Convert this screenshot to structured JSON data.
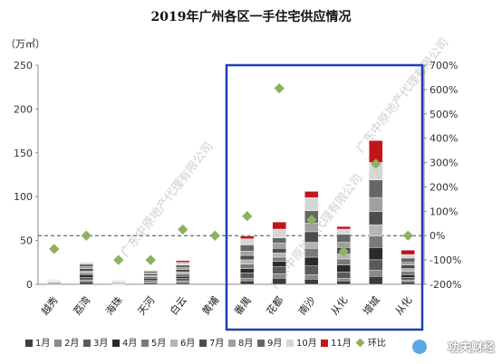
{
  "chart_data": {
    "type": "bar",
    "title": "2019年广州各区一手住宅供应情况",
    "ylabel": "（万㎡）",
    "ylim": [
      0,
      250
    ],
    "y2lim": [
      -200,
      700
    ],
    "yticks": [
      "0",
      "50",
      "100",
      "150",
      "200",
      "250"
    ],
    "y2ticks": [
      "-200%",
      "-100%",
      "0%",
      "100%",
      "200%",
      "300%",
      "400%",
      "500%",
      "600%",
      "700%"
    ],
    "categories": [
      "越秀",
      "荔湾",
      "海珠",
      "天河",
      "白云",
      "黄埔",
      "番禺",
      "花都",
      "南沙",
      "从化",
      "增城",
      "从化"
    ],
    "category_labels": [
      "越秀",
      "荔湾",
      "海珠",
      "天河",
      "白云",
      "黄埔",
      "番禺",
      "花都",
      "南沙",
      "从化",
      "增城",
      "从化"
    ],
    "series": [
      {
        "name": "1月",
        "color": "#3c3c3c",
        "values": [
          1,
          3,
          0.5,
          2,
          2,
          0,
          4,
          7,
          6,
          4,
          9,
          3
        ]
      },
      {
        "name": "2月",
        "color": "#8a8a8a",
        "values": [
          0.5,
          2,
          0.5,
          1,
          2,
          0,
          3,
          5,
          5,
          3,
          7,
          2
        ]
      },
      {
        "name": "3月",
        "color": "#5a5a5a",
        "values": [
          1,
          3,
          1,
          2,
          3,
          0,
          6,
          8,
          10,
          7,
          12,
          3
        ]
      },
      {
        "name": "4月",
        "color": "#2a2a2a",
        "values": [
          0.5,
          3,
          0.5,
          2,
          2,
          0,
          5,
          6,
          10,
          8,
          14,
          3
        ]
      },
      {
        "name": "5月",
        "color": "#7a7a7a",
        "values": [
          0.5,
          2,
          0.5,
          2,
          3,
          0,
          5,
          5,
          10,
          7,
          13,
          4
        ]
      },
      {
        "name": "6月",
        "color": "#b5b5b5",
        "values": [
          0.5,
          2,
          0.5,
          1,
          2,
          0,
          5,
          5,
          7,
          6,
          13,
          3
        ]
      },
      {
        "name": "7月",
        "color": "#4d4d4d",
        "values": [
          0.5,
          3,
          0.5,
          2,
          3,
          0,
          5,
          5,
          12,
          7,
          15,
          4
        ]
      },
      {
        "name": "8月",
        "color": "#a0a0a0",
        "values": [
          0.5,
          2,
          0.5,
          1,
          2,
          0,
          5,
          6,
          10,
          6,
          16,
          3
        ]
      },
      {
        "name": "9月",
        "color": "#666666",
        "values": [
          0.5,
          3,
          0.5,
          2,
          3,
          0,
          7,
          6,
          14,
          9,
          20,
          5
        ]
      },
      {
        "name": "10月",
        "color": "#d6d6d6",
        "values": [
          0.5,
          2,
          0.5,
          1,
          3,
          0,
          7,
          10,
          15,
          6,
          20,
          4
        ]
      },
      {
        "name": "11月",
        "color": "#c0161b",
        "values": [
          0,
          0,
          0,
          0,
          2,
          0,
          3,
          8,
          7,
          3,
          25,
          5
        ]
      }
    ],
    "yoy_series": {
      "name": "环比",
      "color": "#8fb060",
      "values": [
        -55,
        0,
        -100,
        -100,
        25,
        0,
        80,
        605,
        65,
        -65,
        295,
        0
      ]
    },
    "reference_line": {
      "axis": "y2",
      "value": 0,
      "style": "dashed"
    },
    "highlight_box": "番禺 — 从化",
    "legend": "bottom"
  },
  "watermarks": [
    "广东中原地产代理有限公司",
    "广东中原地产代理有限公司",
    "广东中原地产代理有限公司"
  ],
  "brand": {
    "text": "功夫财经",
    "icon": "kungfu-finance-logo-icon"
  }
}
